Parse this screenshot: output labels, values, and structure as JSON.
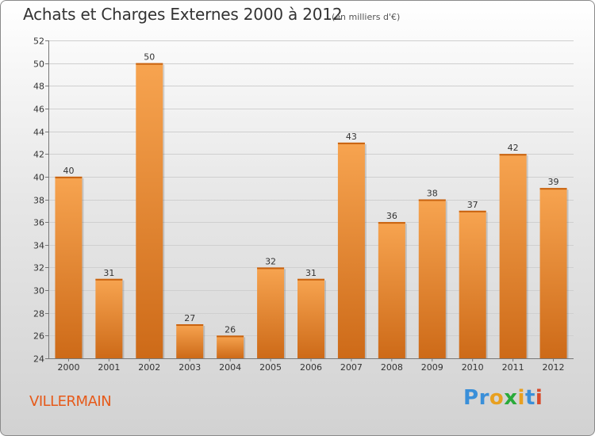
{
  "title": "Achats et Charges Externes 2000 à 2012",
  "unit": "(en milliers d'€)",
  "place": "VILLERMAIN",
  "logo": {
    "text": "Proxiti",
    "letters": [
      "P",
      "r",
      "o",
      "x",
      "i",
      "t",
      "i"
    ],
    "colors": [
      "#3a8fd9",
      "#3a8fd9",
      "#e8a020",
      "#2aaa3a",
      "#e8a020",
      "#3a8fd9",
      "#d84a2a"
    ]
  },
  "colors": {
    "bar_top": "#f7a450",
    "bar_bottom": "#cd6a18",
    "title": "#333333",
    "place": "#e65a1a"
  },
  "chart_data": {
    "type": "bar",
    "title": "Achats et Charges Externes 2000 à 2012",
    "categories": [
      "2000",
      "2001",
      "2002",
      "2003",
      "2004",
      "2005",
      "2006",
      "2007",
      "2008",
      "2009",
      "2010",
      "2011",
      "2012"
    ],
    "values": [
      40,
      31,
      50,
      27,
      26,
      32,
      31,
      43,
      36,
      38,
      37,
      42,
      39
    ],
    "yticks": [
      24,
      26,
      28,
      30,
      32,
      34,
      36,
      38,
      40,
      42,
      44,
      46,
      48,
      50,
      52
    ],
    "ylim": [
      24,
      52
    ],
    "grid": true,
    "data_labels": true
  }
}
